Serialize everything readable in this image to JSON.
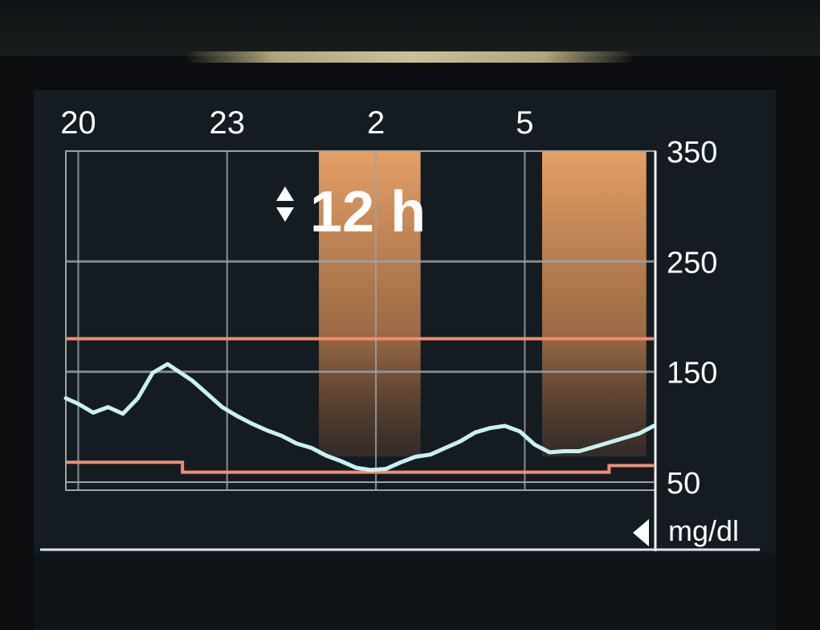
{
  "chart_data": {
    "type": "line",
    "x_ticks": [
      "20",
      "23",
      "2",
      "5"
    ],
    "y_ticks": [
      "350",
      "250",
      "150",
      "50"
    ],
    "ylabel": "mg/dl",
    "zoom_label": "12 h",
    "ylim": [
      50,
      350
    ],
    "x_range_hours": [
      19.75,
      31.6
    ],
    "grid": true,
    "series": [
      {
        "x": [
          19.75,
          20.0,
          20.3,
          20.6,
          20.9,
          21.2,
          21.5,
          21.8,
          22.0,
          22.3,
          22.6,
          22.9,
          23.2,
          23.5,
          23.8,
          24.1,
          24.4,
          24.7,
          25.0,
          25.3,
          25.6,
          25.9,
          26.2,
          26.5,
          26.8,
          27.1,
          27.4,
          27.7,
          28.0,
          28.3,
          28.6,
          28.9,
          29.2,
          29.5,
          29.8,
          30.1,
          30.4,
          30.7,
          31.0,
          31.3,
          31.6
        ],
        "y": [
          126,
          121,
          113,
          118,
          112,
          126,
          149,
          157,
          151,
          142,
          130,
          118,
          110,
          103,
          97,
          92,
          85,
          81,
          74,
          69,
          63,
          61,
          62,
          68,
          73,
          75,
          81,
          87,
          95,
          99,
          101,
          96,
          84,
          77,
          78,
          78,
          82,
          86,
          90,
          94,
          101
        ]
      }
    ],
    "target_high": 180,
    "target_low_steps": [
      {
        "from": 19.75,
        "to": 22.1,
        "value": 68
      },
      {
        "from": 22.1,
        "to": 30.7,
        "value": 59
      },
      {
        "from": 30.7,
        "to": 31.6,
        "value": 65
      }
    ],
    "night_bands": [
      {
        "from": 24.85,
        "to": 26.9
      },
      {
        "from": 29.35,
        "to": 31.45
      }
    ],
    "colors": {
      "glucose_line": "#c8f2f2",
      "target_lines": "#f08c73",
      "band": "#e9a56a",
      "grid": "#9aa3aa",
      "text": "#ffffff"
    }
  }
}
